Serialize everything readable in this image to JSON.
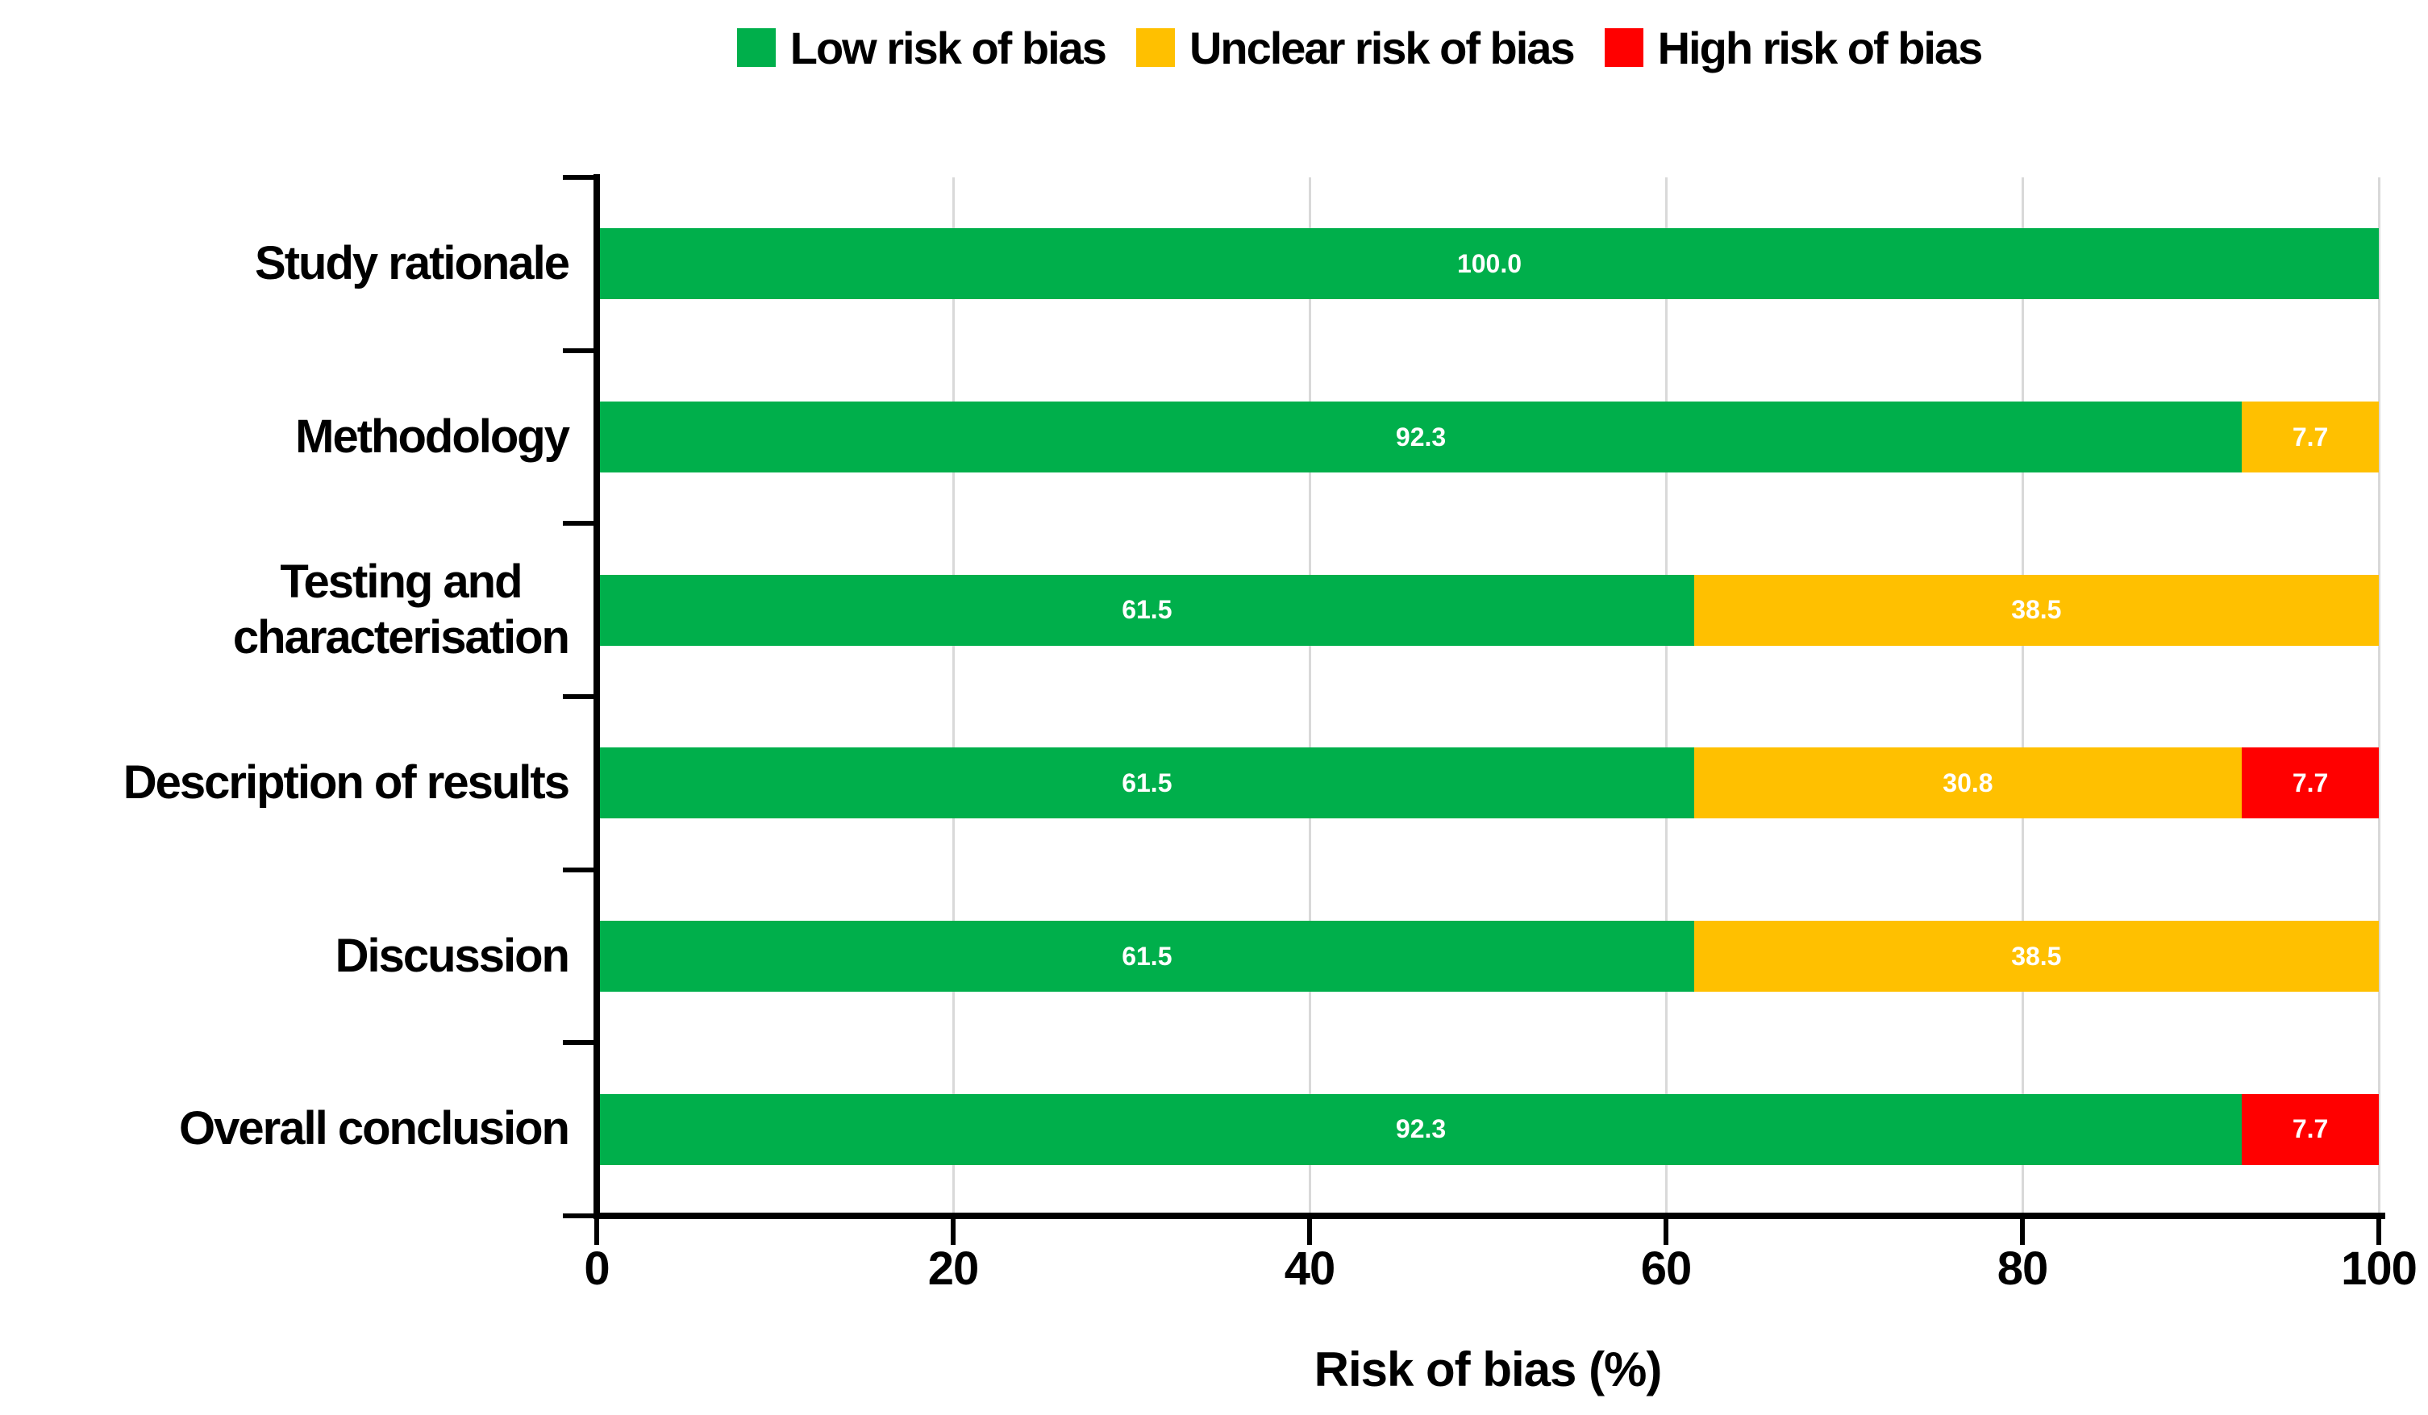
{
  "figure": {
    "background": "#FFFFFF"
  },
  "chart_data": {
    "type": "bar",
    "orientation": "horizontal",
    "stacked": true,
    "title": "",
    "xlabel": "Risk of bias (%)",
    "xlim": [
      0,
      100
    ],
    "xticks": [
      0,
      20,
      40,
      60,
      80,
      100
    ],
    "grid": "vertical-gridlines",
    "gridline_color": "#D9D9D9",
    "axis_color": "#000000",
    "legend_position": "top",
    "value_label_color": "#FFFFFF",
    "value_label_format": "one-decimal",
    "categories": [
      "Study rationale",
      "Methodology",
      "Testing and\ncharacterisation",
      "Description of results",
      "Discussion",
      "Overall conclusion"
    ],
    "series": [
      {
        "name": "Low risk of bias",
        "color": "#00AF4B",
        "values": [
          100.0,
          92.3,
          61.5,
          61.5,
          61.5,
          92.3
        ]
      },
      {
        "name": "Unclear risk of bias",
        "color": "#FFC000",
        "values": [
          0,
          7.7,
          38.5,
          30.8,
          38.5,
          0
        ]
      },
      {
        "name": "High risk of bias",
        "color": "#FF0000",
        "values": [
          0,
          0,
          0,
          7.7,
          0,
          7.7
        ]
      }
    ]
  }
}
